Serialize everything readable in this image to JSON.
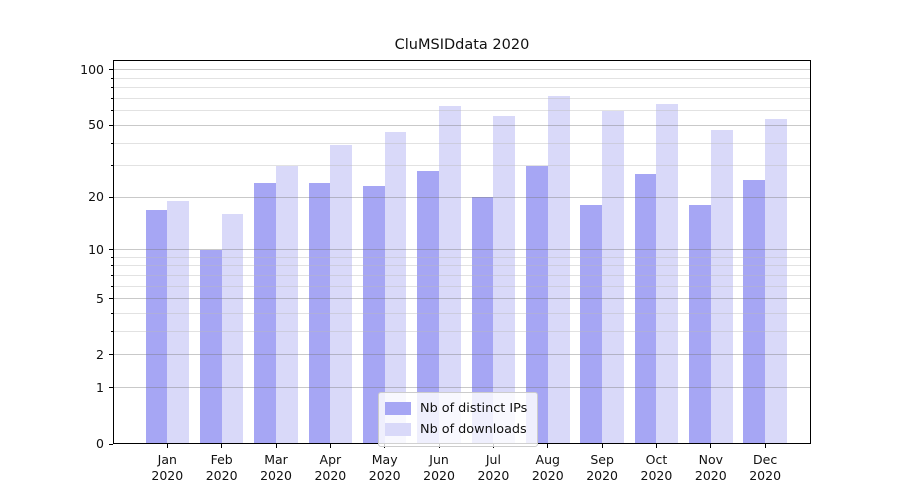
{
  "chart_data": {
    "type": "bar",
    "title": "CluMSIDdata 2020",
    "categories": [
      "Jan 2020",
      "Feb 2020",
      "Mar 2020",
      "Apr 2020",
      "May 2020",
      "Jun 2020",
      "Jul 2020",
      "Aug 2020",
      "Sep 2020",
      "Oct 2020",
      "Nov 2020",
      "Dec 2020"
    ],
    "series": [
      {
        "name": "Nb of distinct IPs",
        "color": "#a6a6f4",
        "values": [
          17,
          10,
          24,
          24,
          23,
          28,
          20,
          30,
          18,
          27,
          18,
          25
        ]
      },
      {
        "name": "Nb of downloads",
        "color": "#d9d9f9",
        "values": [
          19,
          16,
          30,
          39,
          46,
          64,
          56,
          72,
          60,
          65,
          47,
          54
        ]
      }
    ],
    "y_axis": {
      "scale": "log1p",
      "major_ticks": [
        0,
        1,
        2,
        5,
        10,
        20,
        50,
        100
      ],
      "minor_ticks": [
        3,
        4,
        6,
        7,
        8,
        9,
        30,
        40,
        60,
        70,
        80,
        90
      ],
      "max": 113.25
    },
    "grid": true,
    "legend_position": "inside-bottom-center",
    "colors": {
      "major_grid": "rgba(120,120,120,0.40)",
      "minor_grid": "rgba(185,185,185,0.42)",
      "frame": "#000000",
      "text": "#111111"
    }
  }
}
